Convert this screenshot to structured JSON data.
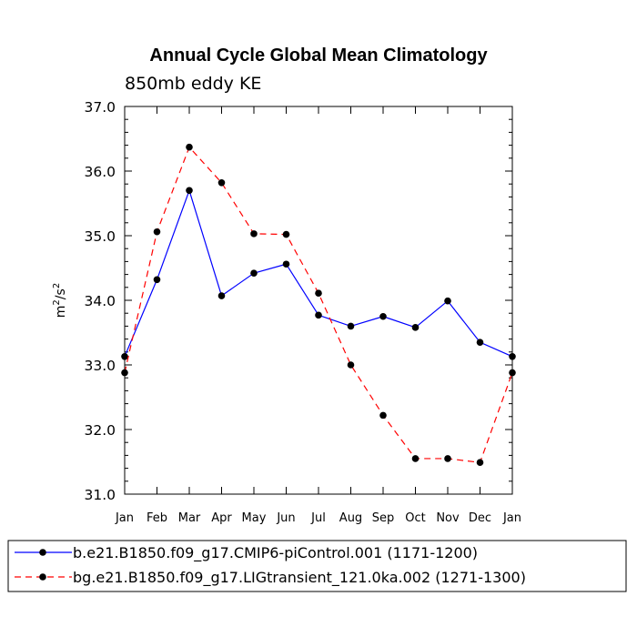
{
  "chart_data": {
    "type": "line",
    "title": "Annual Cycle Global Mean Climatology",
    "subtitle": "850mb eddy KE",
    "xlabel": "",
    "ylabel": "m2/s2",
    "ylabel_base": "m",
    "ylabel_exp1": "2",
    "ylabel_mid": "/s",
    "ylabel_exp2": "2",
    "categories": [
      "Jan",
      "Feb",
      "Mar",
      "Apr",
      "May",
      "Jun",
      "Jul",
      "Aug",
      "Sep",
      "Oct",
      "Nov",
      "Dec",
      "Jan"
    ],
    "ylim": [
      31.0,
      37.0
    ],
    "yticks": [
      31.0,
      32.0,
      33.0,
      34.0,
      35.0,
      36.0,
      37.0
    ],
    "ytick_labels": [
      "31.0",
      "32.0",
      "33.0",
      "34.0",
      "35.0",
      "36.0",
      "37.0"
    ],
    "grid": false,
    "legend_position": "bottom",
    "series": [
      {
        "name": "b.e21.B1850.f09_g17.CMIP6-piControl.001 (1171-1200)",
        "color": "#0000ff",
        "dash": "solid",
        "marker": "circle",
        "values": [
          33.13,
          34.32,
          35.7,
          34.07,
          34.42,
          34.56,
          33.77,
          33.6,
          33.75,
          33.58,
          33.99,
          33.35,
          33.13
        ]
      },
      {
        "name": "bg.e21.B1850.f09_g17.LIGtransient_121.0ka.002 (1271-1300)",
        "color": "#ff0000",
        "dash": "dashed",
        "marker": "circle",
        "values": [
          32.88,
          35.06,
          36.37,
          35.82,
          35.03,
          35.02,
          34.11,
          33.0,
          32.22,
          31.55,
          31.55,
          31.49,
          32.88
        ]
      }
    ]
  }
}
